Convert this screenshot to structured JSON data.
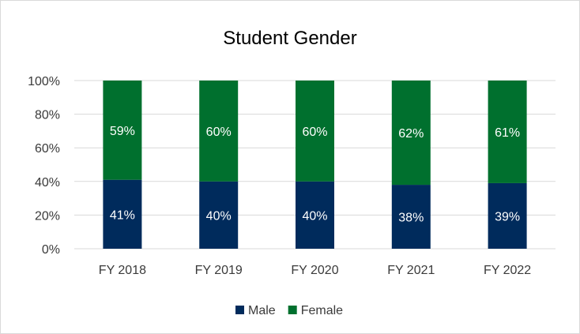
{
  "chart_data": {
    "type": "bar",
    "stacked": true,
    "title": "Student Gender",
    "categories": [
      "FY 2018",
      "FY 2019",
      "FY 2020",
      "FY 2021",
      "FY 2022"
    ],
    "series": [
      {
        "name": "Male",
        "color": "#002b5c",
        "values": [
          41,
          40,
          40,
          38,
          39
        ],
        "labels": [
          "41%",
          "40%",
          "40%",
          "38%",
          "39%"
        ]
      },
      {
        "name": "Female",
        "color": "#00702e",
        "values": [
          59,
          60,
          60,
          62,
          61
        ],
        "labels": [
          "59%",
          "60%",
          "60%",
          "62%",
          "61%"
        ]
      }
    ],
    "yticks": [
      "0%",
      "20%",
      "40%",
      "60%",
      "80%",
      "100%"
    ],
    "ylim": [
      0,
      100
    ],
    "grid": true,
    "legend": "bottom"
  }
}
